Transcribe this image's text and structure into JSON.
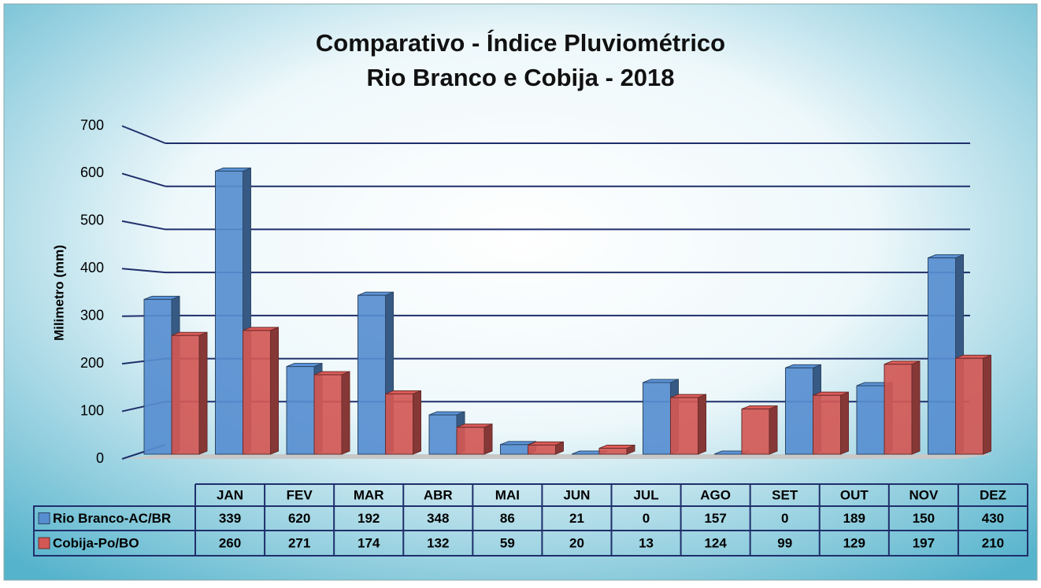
{
  "chart_data": {
    "type": "bar",
    "title": "Comparativo - Índice Pluviométrico",
    "subtitle": "Rio Branco e Cobija - 2018",
    "y_label": "Milimetro (mm)",
    "categories": [
      "JAN",
      "FEV",
      "MAR",
      "ABR",
      "MAI",
      "JUN",
      "JUL",
      "AGO",
      "SET",
      "OUT",
      "NOV",
      "DEZ"
    ],
    "series": [
      {
        "name": "Rio Branco-AC/BR",
        "color": "#4f81bd",
        "values": [
          339,
          620,
          192,
          348,
          86,
          21,
          0,
          157,
          0,
          189,
          150,
          430
        ]
      },
      {
        "name": "Cobija-Po/BO",
        "color": "#c0504d",
        "values": [
          260,
          271,
          174,
          132,
          59,
          20,
          13,
          124,
          99,
          129,
          197,
          210
        ]
      }
    ],
    "ylim": [
      0,
      700
    ],
    "yticks": [
      0,
      100,
      200,
      300,
      400,
      500,
      600,
      700
    ],
    "grid": true
  }
}
